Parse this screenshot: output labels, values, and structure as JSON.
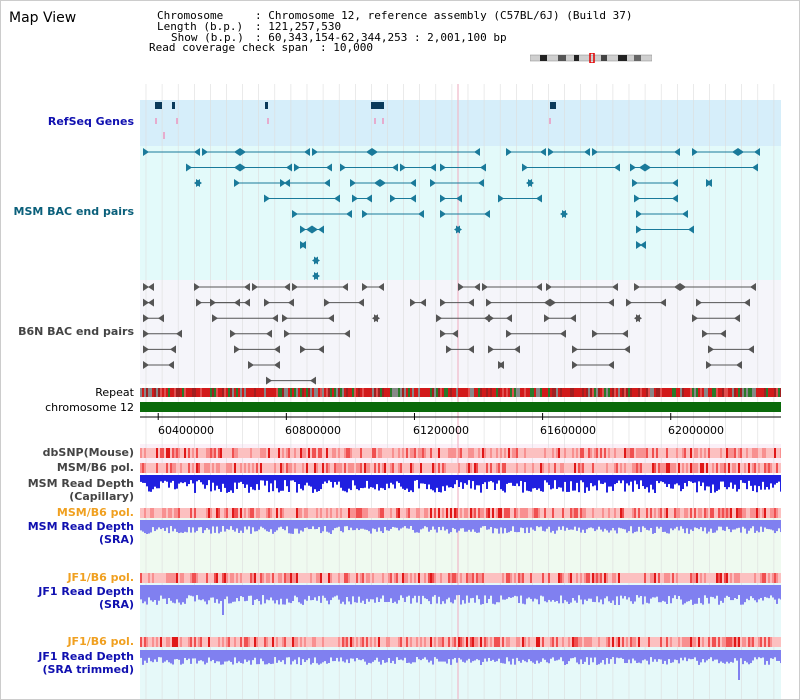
{
  "app": {
    "title": "Map View"
  },
  "info": {
    "chromosome_key": "Chromosome",
    "chromosome_val": ": Chromosome 12, reference assembly (C57BL/6J) (Build 37)",
    "length_key": "Length (b.p.)",
    "length_val": ": 121,257,530",
    "show_key": "Show (b.p.)",
    "show_val": ": 60,343,154-62,344,253 : 2,001,100 bp",
    "coverage_key": "Read coverage check span",
    "coverage_val": ": 10,000"
  },
  "tracks": {
    "refseq": "RefSeq Genes",
    "msm_bac": "MSM BAC end pairs",
    "b6n_bac": "B6N BAC end pairs",
    "repeat": "Repeat",
    "chromosome": "chromosome 12",
    "dbsnp": "dbSNP(Mouse)",
    "msm_b6_pol_1": "MSM/B6 pol.",
    "msm_depth_cap_1": "MSM Read Depth",
    "msm_depth_cap_2": "(Capillary)",
    "msm_b6_pol_2": "MSM/B6 pol.",
    "msm_depth_sra_1": "MSM Read Depth",
    "msm_depth_sra_2": "(SRA)",
    "jf1_pol_1": "JF1/B6 pol.",
    "jf1_depth_sra_1": "JF1 Read Depth",
    "jf1_depth_sra_2": "(SRA)",
    "jf1_pol_2": "JF1/B6 pol.",
    "jf1_depth_trim_1": "JF1 Read Depth",
    "jf1_depth_trim_2": "(SRA trimmed)"
  },
  "axis": {
    "ticks": [
      "60400000",
      "60800000",
      "61200000",
      "61600000",
      "62000000"
    ],
    "tick_values": [
      60400000,
      60800000,
      61200000,
      61600000,
      62000000
    ],
    "range": [
      60343154,
      62344253
    ]
  },
  "colors": {
    "refseq_bg": "#d6eefa",
    "msm_bg": "#e3fafa",
    "b6n_bg": "#f5f5fa",
    "pink_bg": "#fbf0f8",
    "mint_bg": "#effaf0",
    "cyan_bg": "#e6f9f9",
    "label_blue": "#1010b0",
    "label_teal": "#0a5f7a",
    "label_gray": "#444444",
    "label_orange": "#f0a020",
    "chromosome_bar": "#0a6a0a",
    "depth_dark": "#2020e0",
    "depth_light": "#8080f0"
  }
}
